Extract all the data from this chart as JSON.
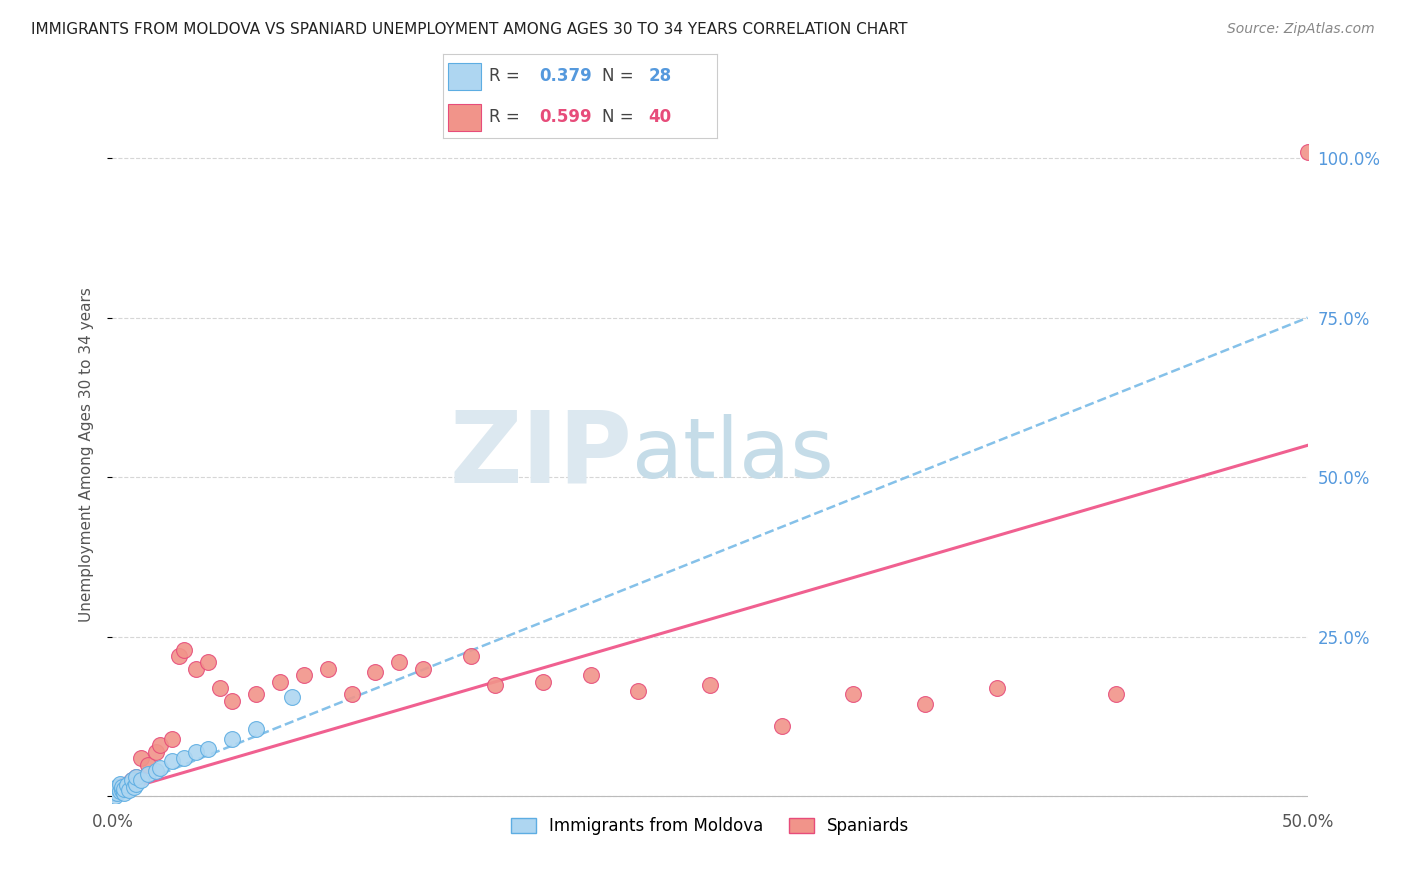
{
  "title": "IMMIGRANTS FROM MOLDOVA VS SPANIARD UNEMPLOYMENT AMONG AGES 30 TO 34 YEARS CORRELATION CHART",
  "source": "Source: ZipAtlas.com",
  "ylabel": "Unemployment Among Ages 30 to 34 years",
  "xlim": [
    0.0,
    0.5
  ],
  "ylim": [
    -0.01,
    1.08
  ],
  "moldova_color": "#aed6f1",
  "moldova_edge": "#5dade2",
  "spaniard_color": "#f1948a",
  "spaniard_edge": "#e74c7a",
  "moldova_line_color": "#85c1e9",
  "spaniard_line_color": "#f06090",
  "moldova_R": 0.379,
  "moldova_N": 28,
  "spaniard_R": 0.599,
  "spaniard_N": 40,
  "moldova_x": [
    0.0,
    0.001,
    0.001,
    0.002,
    0.002,
    0.003,
    0.003,
    0.004,
    0.004,
    0.005,
    0.005,
    0.006,
    0.007,
    0.008,
    0.009,
    0.01,
    0.01,
    0.012,
    0.015,
    0.018,
    0.02,
    0.025,
    0.03,
    0.035,
    0.04,
    0.05,
    0.06,
    0.075
  ],
  "moldova_y": [
    0.005,
    0.0,
    0.01,
    0.005,
    0.015,
    0.008,
    0.02,
    0.01,
    0.015,
    0.005,
    0.012,
    0.018,
    0.01,
    0.025,
    0.015,
    0.02,
    0.03,
    0.025,
    0.035,
    0.04,
    0.045,
    0.055,
    0.06,
    0.07,
    0.075,
    0.09,
    0.105,
    0.155
  ],
  "spaniard_x": [
    0.0,
    0.001,
    0.002,
    0.003,
    0.004,
    0.005,
    0.006,
    0.008,
    0.01,
    0.012,
    0.015,
    0.018,
    0.02,
    0.025,
    0.028,
    0.03,
    0.035,
    0.04,
    0.045,
    0.05,
    0.06,
    0.07,
    0.08,
    0.09,
    0.1,
    0.11,
    0.12,
    0.13,
    0.15,
    0.16,
    0.18,
    0.2,
    0.22,
    0.25,
    0.28,
    0.31,
    0.34,
    0.37,
    0.42,
    0.5
  ],
  "spaniard_y": [
    0.005,
    0.01,
    0.008,
    0.015,
    0.012,
    0.018,
    0.02,
    0.025,
    0.03,
    0.06,
    0.05,
    0.07,
    0.08,
    0.09,
    0.22,
    0.23,
    0.2,
    0.21,
    0.17,
    0.15,
    0.16,
    0.18,
    0.19,
    0.2,
    0.16,
    0.195,
    0.21,
    0.2,
    0.22,
    0.175,
    0.18,
    0.19,
    0.165,
    0.175,
    0.11,
    0.16,
    0.145,
    0.17,
    0.16,
    1.01
  ],
  "moldova_trend_x": [
    0.0,
    0.5
  ],
  "moldova_trend_y": [
    0.005,
    0.75
  ],
  "spaniard_trend_x": [
    0.0,
    0.5
  ],
  "spaniard_trend_y": [
    0.005,
    0.55
  ]
}
